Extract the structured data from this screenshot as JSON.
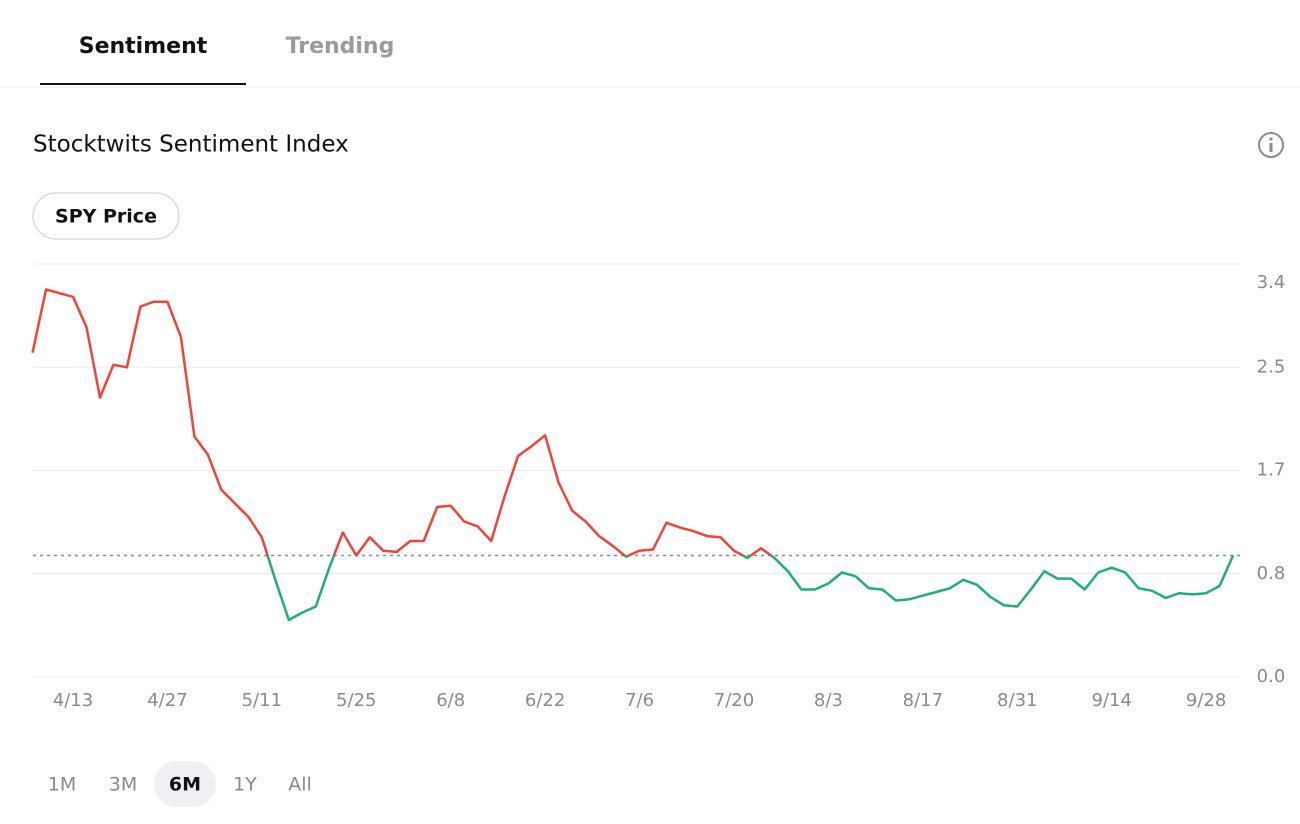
{
  "tabs": {
    "items": [
      "Sentiment",
      "Trending"
    ],
    "active": 0
  },
  "title": "Stocktwits Sentiment Index",
  "toggle": "SPY Price",
  "ranges": {
    "items": [
      "1M",
      "3M",
      "6M",
      "1Y",
      "All"
    ],
    "active": 2
  },
  "chart_data": {
    "type": "line",
    "categories": [
      null,
      null,
      null,
      "4/13",
      null,
      null,
      null,
      null,
      null,
      null,
      "4/27",
      null,
      null,
      null,
      null,
      null,
      null,
      "5/11",
      null,
      null,
      null,
      null,
      null,
      null,
      "5/25",
      null,
      null,
      null,
      null,
      null,
      null,
      "6/8",
      null,
      null,
      null,
      null,
      null,
      null,
      "6/22",
      null,
      null,
      null,
      null,
      null,
      null,
      "7/6",
      null,
      null,
      null,
      null,
      null,
      null,
      "7/20",
      null,
      null,
      null,
      null,
      null,
      null,
      "8/3",
      null,
      null,
      null,
      null,
      null,
      null,
      "8/17",
      null,
      null,
      null,
      null,
      null,
      null,
      "8/31",
      null,
      null,
      null,
      null,
      null,
      null,
      "9/14",
      null,
      null,
      null,
      null,
      null,
      null,
      "9/28",
      null,
      null
    ],
    "values": [
      2.67,
      3.19,
      3.16,
      3.13,
      2.88,
      2.3,
      2.57,
      2.55,
      3.05,
      3.09,
      3.09,
      2.8,
      1.98,
      1.83,
      1.54,
      1.43,
      1.32,
      1.15,
      0.8,
      0.47,
      0.53,
      0.58,
      0.9,
      1.19,
      1.0,
      1.15,
      1.04,
      1.03,
      1.12,
      1.12,
      1.4,
      1.41,
      1.28,
      1.24,
      1.12,
      1.49,
      1.82,
      1.9,
      1.99,
      1.6,
      1.37,
      1.28,
      1.16,
      1.08,
      0.99,
      1.04,
      1.05,
      1.27,
      1.23,
      1.2,
      1.16,
      1.15,
      1.04,
      0.98,
      1.06,
      0.98,
      0.87,
      0.72,
      0.72,
      0.77,
      0.86,
      0.83,
      0.73,
      0.72,
      0.63,
      0.64,
      0.67,
      0.7,
      0.73,
      0.8,
      0.76,
      0.66,
      0.59,
      0.58,
      0.72,
      0.87,
      0.81,
      0.81,
      0.72,
      0.86,
      0.9,
      0.86,
      0.73,
      0.71,
      0.65,
      0.69,
      0.68,
      0.69,
      0.75,
      1.0
    ],
    "color_above": "#f0443a",
    "color_below": "#1fae7a",
    "threshold": 1.0,
    "ylim": [
      0,
      3.4
    ],
    "yticks": [
      {
        "value": 0,
        "label": "0.0"
      },
      {
        "value": 0.85,
        "label": "0.8"
      },
      1.7,
      {
        "value": 2.55,
        "label": "2.5"
      },
      3.4
    ],
    "grid": true
  }
}
